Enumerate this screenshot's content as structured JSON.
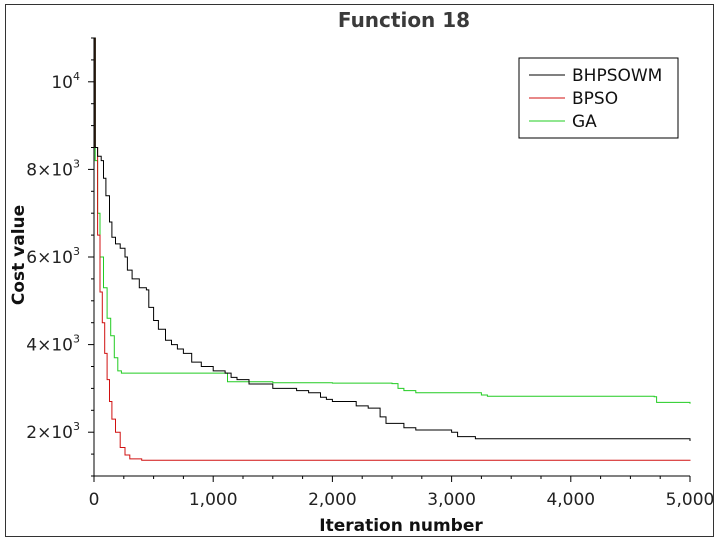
{
  "chart_data": {
    "type": "line",
    "title": "Function 18",
    "xlabel": "Iteration number",
    "ylabel": "Cost value",
    "xlim": [
      0,
      5000
    ],
    "ylim": [
      1000,
      11000
    ],
    "x_ticks": [
      0,
      1000,
      2000,
      3000,
      4000,
      5000
    ],
    "x_tick_labels": [
      "0",
      "1,000",
      "2,000",
      "3,000",
      "4,000",
      "5,000"
    ],
    "y_ticks": [
      2000,
      4000,
      6000,
      8000,
      10000
    ],
    "y_tick_labels": [
      {
        "base": "2×10",
        "exp": "3"
      },
      {
        "base": "4×10",
        "exp": "3"
      },
      {
        "base": "6×10",
        "exp": "3"
      },
      {
        "base": "8×10",
        "exp": "3"
      },
      {
        "base": "10",
        "exp": "4"
      }
    ],
    "grid": false,
    "legend_position": "top-right",
    "series": [
      {
        "name": "BHPSOWM",
        "color": "#000000",
        "points": [
          [
            0,
            11000
          ],
          [
            10,
            8500
          ],
          [
            30,
            8300
          ],
          [
            60,
            8200
          ],
          [
            80,
            7800
          ],
          [
            100,
            7400
          ],
          [
            130,
            6800
          ],
          [
            150,
            6450
          ],
          [
            180,
            6300
          ],
          [
            220,
            6200
          ],
          [
            260,
            6000
          ],
          [
            280,
            5700
          ],
          [
            320,
            5500
          ],
          [
            380,
            5300
          ],
          [
            440,
            5250
          ],
          [
            460,
            4850
          ],
          [
            500,
            4550
          ],
          [
            540,
            4350
          ],
          [
            600,
            4100
          ],
          [
            650,
            4000
          ],
          [
            700,
            3900
          ],
          [
            750,
            3800
          ],
          [
            820,
            3600
          ],
          [
            900,
            3500
          ],
          [
            1000,
            3400
          ],
          [
            1100,
            3350
          ],
          [
            1150,
            3250
          ],
          [
            1200,
            3200
          ],
          [
            1300,
            3100
          ],
          [
            1500,
            3000
          ],
          [
            1700,
            2950
          ],
          [
            1800,
            2900
          ],
          [
            1900,
            2800
          ],
          [
            1950,
            2750
          ],
          [
            2000,
            2700
          ],
          [
            2200,
            2600
          ],
          [
            2300,
            2550
          ],
          [
            2400,
            2350
          ],
          [
            2450,
            2200
          ],
          [
            2600,
            2100
          ],
          [
            2700,
            2050
          ],
          [
            3000,
            2000
          ],
          [
            3050,
            1900
          ],
          [
            3200,
            1850
          ],
          [
            3500,
            1850
          ],
          [
            5000,
            1800
          ]
        ]
      },
      {
        "name": "BPSO",
        "color": "#d01010",
        "points": [
          [
            0,
            11000
          ],
          [
            10,
            8500
          ],
          [
            30,
            6500
          ],
          [
            50,
            5200
          ],
          [
            70,
            4500
          ],
          [
            90,
            3800
          ],
          [
            110,
            3200
          ],
          [
            130,
            2700
          ],
          [
            150,
            2300
          ],
          [
            180,
            2000
          ],
          [
            220,
            1650
          ],
          [
            260,
            1480
          ],
          [
            300,
            1390
          ],
          [
            400,
            1360
          ],
          [
            5000,
            1350
          ]
        ]
      },
      {
        "name": "GA",
        "color": "#22cc22",
        "points": [
          [
            0,
            11000
          ],
          [
            10,
            8200
          ],
          [
            30,
            7000
          ],
          [
            50,
            6000
          ],
          [
            80,
            5300
          ],
          [
            110,
            4600
          ],
          [
            140,
            4200
          ],
          [
            170,
            3700
          ],
          [
            200,
            3400
          ],
          [
            230,
            3350
          ],
          [
            400,
            3350
          ],
          [
            1100,
            3350
          ],
          [
            1120,
            3150
          ],
          [
            1500,
            3130
          ],
          [
            2000,
            3120
          ],
          [
            2500,
            3110
          ],
          [
            2550,
            3000
          ],
          [
            2600,
            2950
          ],
          [
            2700,
            2900
          ],
          [
            3200,
            2900
          ],
          [
            3250,
            2850
          ],
          [
            3300,
            2820
          ],
          [
            4700,
            2810
          ],
          [
            4720,
            2680
          ],
          [
            5000,
            2650
          ]
        ]
      }
    ]
  }
}
